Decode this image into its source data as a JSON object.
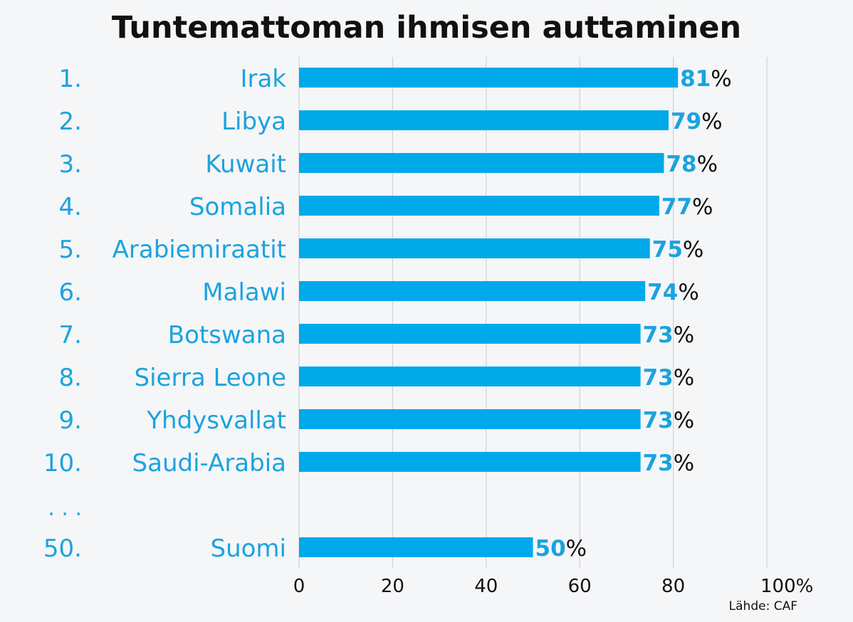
{
  "chart_data": {
    "type": "bar",
    "orientation": "horizontal",
    "title": "Tuntemattoman ihmisen auttaminen",
    "ranks": [
      "1.",
      "2.",
      "3.",
      "4.",
      "5.",
      "6.",
      "7.",
      "8.",
      "9.",
      "10.",
      "50."
    ],
    "categories": [
      "Irak",
      "Libya",
      "Kuwait",
      "Somalia",
      "Arabiemiraatit",
      "Malawi",
      "Botswana",
      "Sierra Leone",
      "Yhdysvallat",
      "Saudi-Arabia",
      "Suomi"
    ],
    "values": [
      81,
      79,
      78,
      77,
      75,
      74,
      73,
      73,
      73,
      73,
      50
    ],
    "value_suffix": "%",
    "gap_marker": ". . .",
    "xlim": [
      0,
      100
    ],
    "xticks": [
      "0",
      "20",
      "40",
      "60",
      "80",
      "100%"
    ],
    "grid": true,
    "source": "Lähde:  CAF",
    "colors": {
      "bar": "#00a9ea",
      "label": "#1aa3df",
      "text": "#111111",
      "grid": "#c9cbcf",
      "background": "#f5f6f8"
    }
  }
}
